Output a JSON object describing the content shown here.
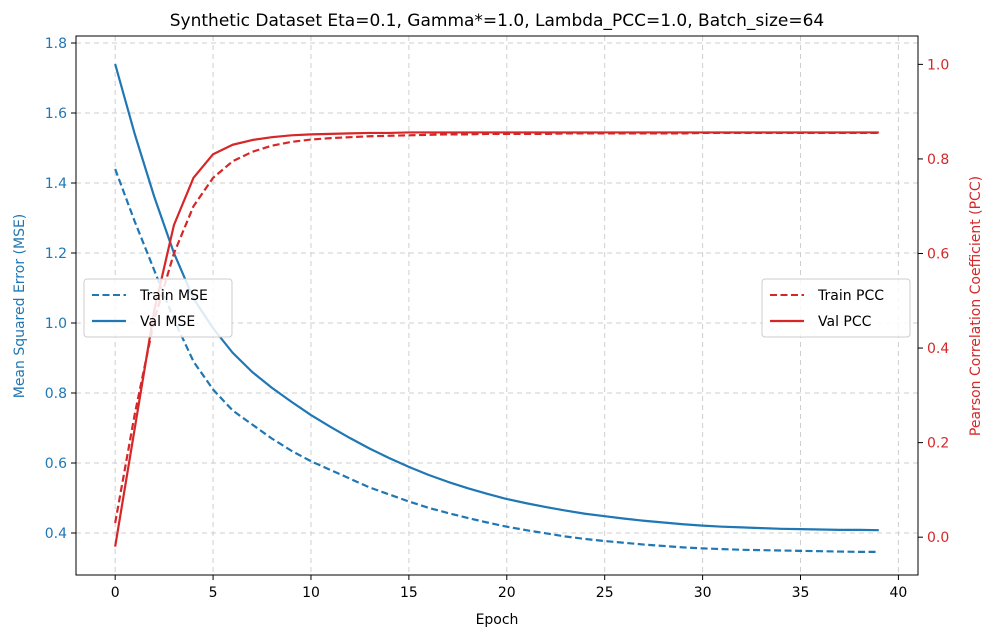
{
  "chart_data": {
    "type": "line",
    "title": "Synthetic Dataset Eta=0.1, Gamma*=1.0, Lambda_PCC=1.0, Batch_size=64",
    "xlabel": "Epoch",
    "ylabel_left": "Mean Squared Error (MSE)",
    "ylabel_right": "Pearson Correlation Coefficient (PCC)",
    "xlim": [
      -2,
      41
    ],
    "ylim_left": [
      0.28,
      1.82
    ],
    "ylim_right": [
      -0.08,
      1.06
    ],
    "x_ticks": [
      0,
      5,
      10,
      15,
      20,
      25,
      30,
      35,
      40
    ],
    "x_tick_labels": [
      "0",
      "5",
      "10",
      "15",
      "20",
      "25",
      "30",
      "35",
      "40"
    ],
    "y_left_ticks": [
      0.4,
      0.6,
      0.8,
      1.0,
      1.2,
      1.4,
      1.6,
      1.8
    ],
    "y_left_tick_labels": [
      "0.4",
      "0.6",
      "0.8",
      "1.0",
      "1.2",
      "1.4",
      "1.6",
      "1.8"
    ],
    "y_right_ticks": [
      0.0,
      0.2,
      0.4,
      0.6,
      0.8,
      1.0
    ],
    "y_right_tick_labels": [
      "0.0",
      "0.2",
      "0.4",
      "0.6",
      "0.8",
      "1.0"
    ],
    "grid": true,
    "colors": {
      "mse": "#1f77b4",
      "pcc": "#d62728"
    },
    "x": [
      0,
      1,
      2,
      3,
      4,
      5,
      6,
      7,
      8,
      9,
      10,
      11,
      12,
      13,
      14,
      15,
      16,
      17,
      18,
      19,
      20,
      21,
      22,
      23,
      24,
      25,
      26,
      27,
      28,
      29,
      30,
      31,
      32,
      33,
      34,
      35,
      36,
      37,
      38,
      39
    ],
    "series": [
      {
        "name": "Train MSE",
        "axis": "left",
        "style": "dashed",
        "color": "#1f77b4",
        "values": [
          1.44,
          1.29,
          1.15,
          1.01,
          0.89,
          0.81,
          0.75,
          0.71,
          0.67,
          0.635,
          0.605,
          0.58,
          0.555,
          0.53,
          0.51,
          0.49,
          0.472,
          0.457,
          0.443,
          0.43,
          0.418,
          0.408,
          0.399,
          0.39,
          0.383,
          0.377,
          0.372,
          0.367,
          0.363,
          0.359,
          0.356,
          0.354,
          0.352,
          0.351,
          0.35,
          0.349,
          0.348,
          0.347,
          0.346,
          0.346
        ]
      },
      {
        "name": "Val MSE",
        "axis": "left",
        "style": "solid",
        "color": "#1f77b4",
        "values": [
          1.74,
          1.54,
          1.36,
          1.2,
          1.07,
          0.985,
          0.915,
          0.86,
          0.815,
          0.775,
          0.737,
          0.703,
          0.671,
          0.641,
          0.614,
          0.589,
          0.566,
          0.546,
          0.528,
          0.512,
          0.497,
          0.485,
          0.474,
          0.464,
          0.455,
          0.448,
          0.441,
          0.435,
          0.43,
          0.425,
          0.421,
          0.418,
          0.416,
          0.414,
          0.412,
          0.411,
          0.41,
          0.409,
          0.409,
          0.408
        ]
      },
      {
        "name": "Train PCC",
        "axis": "right",
        "style": "dashed",
        "color": "#d62728",
        "values": [
          0.03,
          0.26,
          0.46,
          0.6,
          0.7,
          0.76,
          0.795,
          0.815,
          0.828,
          0.836,
          0.841,
          0.844,
          0.846,
          0.848,
          0.849,
          0.85,
          0.851,
          0.852,
          0.852,
          0.853,
          0.853,
          0.853,
          0.853,
          0.854,
          0.854,
          0.854,
          0.854,
          0.854,
          0.854,
          0.854,
          0.855,
          0.855,
          0.855,
          0.855,
          0.855,
          0.855,
          0.855,
          0.855,
          0.855,
          0.855
        ]
      },
      {
        "name": "Val PCC",
        "axis": "right",
        "style": "solid",
        "color": "#d62728",
        "values": [
          -0.02,
          0.23,
          0.48,
          0.66,
          0.76,
          0.81,
          0.83,
          0.84,
          0.846,
          0.85,
          0.852,
          0.853,
          0.854,
          0.855,
          0.855,
          0.856,
          0.856,
          0.856,
          0.856,
          0.856,
          0.856,
          0.856,
          0.856,
          0.856,
          0.856,
          0.856,
          0.856,
          0.856,
          0.856,
          0.856,
          0.856,
          0.856,
          0.856,
          0.856,
          0.856,
          0.856,
          0.856,
          0.856,
          0.856,
          0.856
        ]
      }
    ],
    "legends": [
      {
        "location": "center-left",
        "entries": [
          "Train MSE",
          "Val MSE"
        ]
      },
      {
        "location": "center-right",
        "entries": [
          "Train PCC",
          "Val PCC"
        ]
      }
    ]
  }
}
